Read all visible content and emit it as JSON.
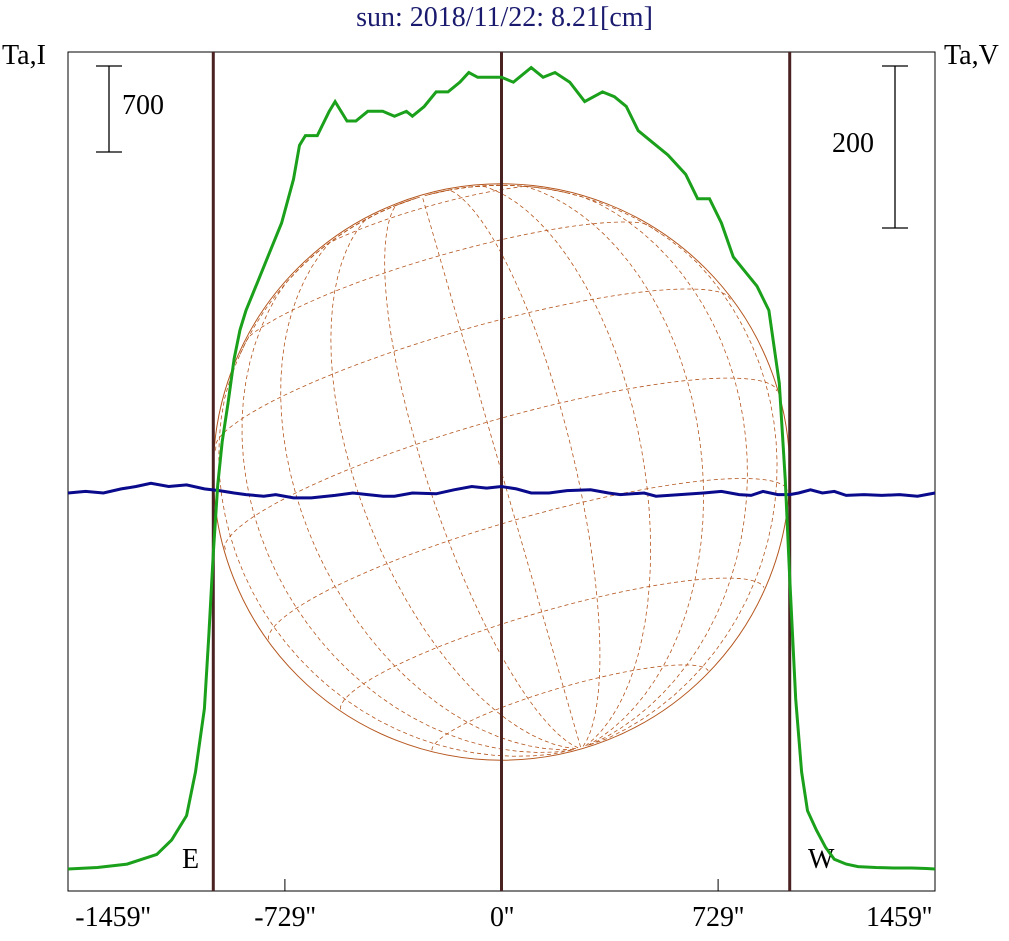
{
  "chart_data": {
    "type": "line",
    "title": "sun: 2018/11/22: 8.21[cm]",
    "left_axis_label": "Ta,I",
    "right_axis_label": "Ta,V",
    "scale_bars": {
      "left": "700",
      "right": "200"
    },
    "limb_labels": {
      "east": "E",
      "west": "W"
    },
    "x_ticks": [
      {
        "value": -1459,
        "label": "-1459''"
      },
      {
        "value": -729,
        "label": "-729''"
      },
      {
        "value": 0,
        "label": "0''"
      },
      {
        "value": 729,
        "label": "729''"
      },
      {
        "value": 1459,
        "label": "1459''"
      }
    ],
    "xlim": [
      -1459,
      1459
    ],
    "limb_lines_arcsec": [
      -970,
      0,
      970
    ],
    "disk_radius_arcsec": 970,
    "colors": {
      "intensity": "#1ba01b",
      "polarization": "#0a0a8c",
      "disk": "#b5561e",
      "limb": "#4a2222",
      "title": "#1a1a6e"
    },
    "series": [
      {
        "name": "Ta,I",
        "x": [
          -1459,
          -1360,
          -1260,
          -1160,
          -1110,
          -1060,
          -1030,
          -1000,
          -985,
          -970,
          -955,
          -940,
          -920,
          -900,
          -880,
          -860,
          -820,
          -780,
          -740,
          -700,
          -680,
          -660,
          -620,
          -580,
          -560,
          -520,
          -490,
          -450,
          -400,
          -360,
          -320,
          -300,
          -260,
          -220,
          -180,
          -140,
          -110,
          -80,
          -30,
          0,
          40,
          100,
          140,
          180,
          230,
          280,
          340,
          380,
          420,
          460,
          500,
          560,
          620,
          660,
          700,
          740,
          780,
          820,
          860,
          900,
          935,
          955,
          970,
          990,
          1010,
          1030,
          1060,
          1090,
          1120,
          1160,
          1200,
          1260,
          1320,
          1380,
          1430,
          1459
        ],
        "y": [
          0,
          3,
          10,
          30,
          60,
          110,
          200,
          330,
          480,
          650,
          790,
          880,
          960,
          1050,
          1110,
          1150,
          1210,
          1270,
          1330,
          1420,
          1490,
          1510,
          1510,
          1560,
          1580,
          1540,
          1540,
          1560,
          1560,
          1550,
          1560,
          1550,
          1570,
          1600,
          1600,
          1620,
          1640,
          1630,
          1630,
          1630,
          1620,
          1650,
          1630,
          1640,
          1620,
          1580,
          1600,
          1590,
          1570,
          1520,
          1500,
          1470,
          1430,
          1380,
          1380,
          1330,
          1260,
          1230,
          1200,
          1150,
          1000,
          800,
          600,
          350,
          200,
          120,
          80,
          45,
          20,
          10,
          5,
          3,
          2,
          2,
          1,
          0
        ]
      },
      {
        "name": "Ta,V",
        "x": [
          -1459,
          -1400,
          -1340,
          -1280,
          -1230,
          -1180,
          -1120,
          -1060,
          -1000,
          -950,
          -900,
          -860,
          -800,
          -760,
          -700,
          -640,
          -560,
          -500,
          -450,
          -400,
          -360,
          -300,
          -220,
          -160,
          -100,
          -50,
          0,
          50,
          100,
          160,
          220,
          300,
          360,
          400,
          480,
          520,
          600,
          680,
          740,
          800,
          840,
          880,
          930,
          970,
          1000,
          1040,
          1080,
          1120,
          1160,
          1220,
          1280,
          1340,
          1400,
          1459
        ],
        "y": [
          0,
          2,
          0,
          5,
          8,
          12,
          8,
          10,
          5,
          3,
          0,
          -2,
          -4,
          -2,
          -6,
          -6,
          -3,
          0,
          -2,
          -4,
          -4,
          0,
          -1,
          4,
          8,
          6,
          8,
          5,
          0,
          0,
          3,
          4,
          0,
          -2,
          0,
          -4,
          -2,
          0,
          2,
          -2,
          -3,
          2,
          -2,
          -2,
          0,
          4,
          0,
          2,
          -3,
          -2,
          -3,
          -2,
          -4,
          0
        ]
      }
    ]
  }
}
